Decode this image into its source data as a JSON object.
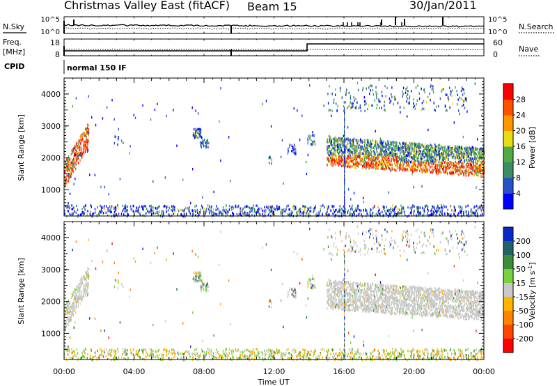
{
  "header": {
    "station": "Christmas Valley East (fitACF)",
    "beam": "Beam 15",
    "date": "30/Jan/2011"
  },
  "status_panel": {
    "nsky_label": "N.Sky",
    "nsearch_label": "N.Search",
    "noise_ticks_left": [
      "10^5",
      "10^0"
    ],
    "noise_ticks_right": [
      "10^5",
      "10^0"
    ],
    "freq_label": "Freq.",
    "freq_unit": "[MHz]",
    "freq_ticks": [
      "18",
      "8"
    ],
    "nave_label": "Nave",
    "nave_ticks": [
      "60",
      "0"
    ],
    "cpid_label": "CPID",
    "cpid_value": "normal 150 IF"
  },
  "chart_data": [
    {
      "type": "heatmap",
      "name": "power-panel",
      "ylabel": "Slant Range [km]",
      "xlabel": "",
      "x_range_hours": [
        0,
        24
      ],
      "ylim": [
        180,
        4500
      ],
      "y_ticks": [
        1000,
        2000,
        3000,
        4000
      ],
      "colorbar": {
        "label": "Power [dB]",
        "ticks": [
          4,
          8,
          12,
          16,
          20,
          24,
          28
        ],
        "colors": [
          "#0000ff",
          "#2850c8",
          "#3c8c64",
          "#50aa46",
          "#e6dc14",
          "#ff9600",
          "#ff5000",
          "#ff0000"
        ]
      }
    },
    {
      "type": "heatmap",
      "name": "velocity-panel",
      "ylabel": "Slant Range [km]",
      "xlabel": "Time UT",
      "x_range_hours": [
        0,
        24
      ],
      "ylim": [
        180,
        4500
      ],
      "y_ticks": [
        1000,
        2000,
        3000,
        4000
      ],
      "x_tick_labels": [
        "00:00",
        "04:00",
        "08:00",
        "12:00",
        "16:00",
        "20:00",
        "00:00"
      ],
      "colorbar": {
        "label": "Velocity [m s-1]",
        "ticks": [
          200,
          100,
          50,
          15,
          -15,
          -50,
          -100,
          -200
        ],
        "colors": [
          "#0a28c8",
          "#1e6464",
          "#3c8c3c",
          "#78d23c",
          "#c8c8c8",
          "#ffb400",
          "#ff8200",
          "#ff4600",
          "#ff0000"
        ]
      }
    }
  ]
}
